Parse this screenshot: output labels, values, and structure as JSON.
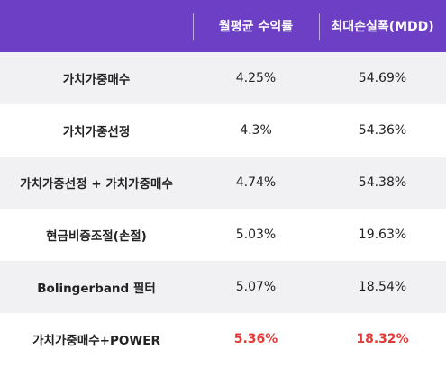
{
  "header": {
    "col0": "",
    "col1": "월평균 수익률",
    "col2": "최대손실폭(MDD)"
  },
  "rows": [
    {
      "name": "가치가중매수",
      "monthly_return": "4.25%",
      "mdd": "54.69%"
    },
    {
      "name": "가치가중선정",
      "monthly_return": "4.3%",
      "mdd": "54.36%"
    },
    {
      "name": "가치가중선정 + 가치가중매수",
      "monthly_return": "4.74%",
      "mdd": "54.38%"
    },
    {
      "name": "현금비중조절(손절)",
      "monthly_return": "5.03%",
      "mdd": "19.63%"
    },
    {
      "name": "Bolingerband 필터",
      "monthly_return": "5.07%",
      "mdd": "18.54%"
    },
    {
      "name": "가치가중매수+POWER",
      "monthly_return": "5.36%",
      "mdd": "18.32%"
    }
  ],
  "colors": {
    "header_bg": "#6c3fc4",
    "highlight": "#e53935",
    "row_alt": "#f1f1f3"
  }
}
